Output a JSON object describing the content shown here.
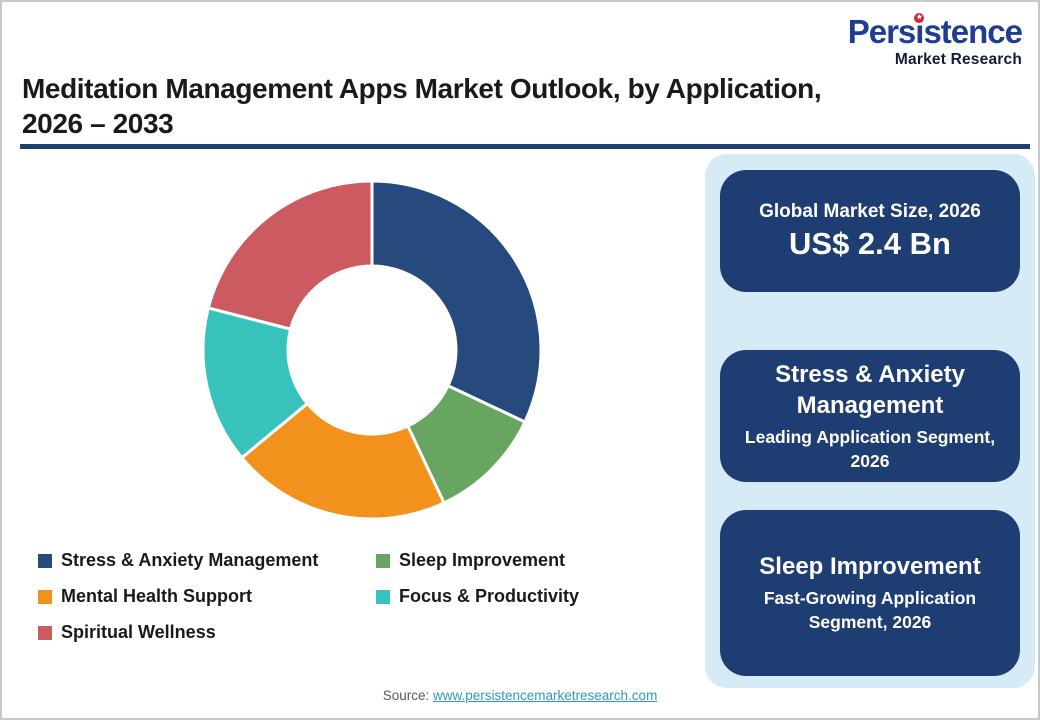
{
  "logo": {
    "text": "Persistence",
    "star_char_index": 4,
    "star_glyph": "★",
    "tagline": "Market Research",
    "colors": {
      "name": "#203d92",
      "tagline": "#131c36",
      "star": "#d6232a"
    }
  },
  "header": {
    "title_line1": "Meditation Management Apps Market Outlook, by Application,",
    "title_line2": "2026 – 2033",
    "rule_color": "#1f3f70"
  },
  "chart_data": {
    "type": "pie",
    "subtype": "donut",
    "start_angle_deg": 0,
    "direction": "clockwise",
    "categories": [
      "Stress & Anxiety Management",
      "Sleep Improvement",
      "Mental Health Support",
      "Focus & Productivity",
      "Spiritual Wellness"
    ],
    "values": [
      32,
      11,
      21,
      15,
      21
    ],
    "values_note": "percent share estimated from arc angles; no data labels shown in image",
    "colors": [
      "#26497e",
      "#67a561",
      "#f2921d",
      "#38c2bc",
      "#cb5a61"
    ],
    "legend_position": "bottom-left",
    "donut_hole_ratio": 0.5,
    "segment_gap_color": "#ffffff"
  },
  "side_panel": {
    "bg_color": "#d7ebf7",
    "card_bg_color": "#1e3d73",
    "cards": [
      {
        "title": "Global Market Size, 2026",
        "value": "US$ 2.4 Bn"
      },
      {
        "title": "Stress & Anxiety Management",
        "subtitle": "Leading Application Segment, 2026"
      },
      {
        "title": "Sleep Improvement",
        "subtitle": "Fast-Growing Application Segment, 2026"
      }
    ]
  },
  "footer": {
    "source_label": "Source:",
    "source_url": "www.persistencemarketresearch.com",
    "link_color": "#2e9bc0"
  }
}
